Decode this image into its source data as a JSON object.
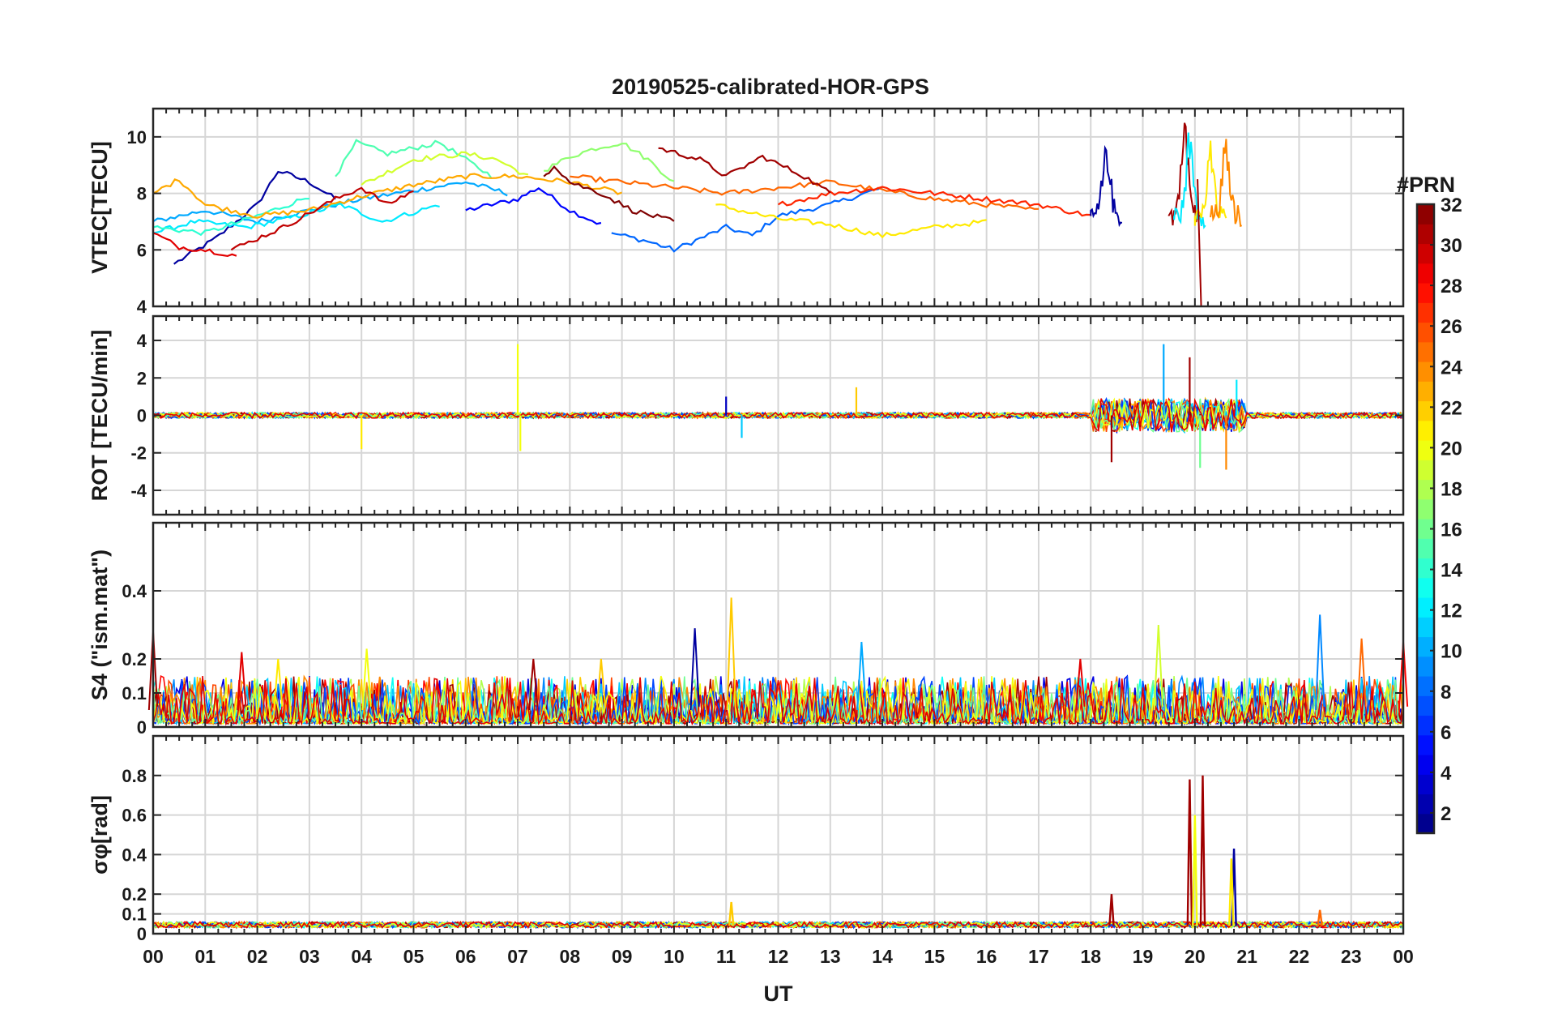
{
  "figure": {
    "title": "20190525-calibrated-HOR-GPS",
    "xlabel": "UT",
    "x_ticks": [
      "00",
      "01",
      "02",
      "03",
      "04",
      "05",
      "06",
      "07",
      "08",
      "09",
      "10",
      "11",
      "12",
      "13",
      "14",
      "15",
      "16",
      "17",
      "18",
      "19",
      "20",
      "21",
      "22",
      "23",
      "00"
    ]
  },
  "colorbar": {
    "label": "#PRN",
    "ticks": [
      "2",
      "4",
      "6",
      "8",
      "10",
      "12",
      "14",
      "16",
      "18",
      "20",
      "22",
      "24",
      "26",
      "28",
      "30",
      "32"
    ],
    "range": [
      1,
      32
    ],
    "colormap": "jet"
  },
  "chart_data": [
    {
      "type": "line",
      "panel": "vtec",
      "ylabel": "VTEC[TECU]",
      "ylim": [
        4,
        11
      ],
      "yticks": [
        4,
        6,
        8,
        10
      ],
      "xlim": [
        0,
        24
      ],
      "grid": true,
      "series_note": "One line per GPS satellite, colored by PRN",
      "series": [
        {
          "prn": 2,
          "x": [
            0.4,
            1.2,
            2.0,
            2.4,
            3.0,
            3.5
          ],
          "values": [
            5.5,
            6.4,
            7.6,
            8.8,
            8.4,
            7.8
          ]
        },
        {
          "prn": 5,
          "x": [
            6.0,
            7.0,
            7.4,
            8.0,
            8.6
          ],
          "values": [
            7.4,
            7.8,
            8.2,
            7.4,
            6.9
          ]
        },
        {
          "prn": 8,
          "x": [
            8.8,
            9.5,
            10.0,
            11.0,
            11.5,
            12.0,
            13.0,
            14.0
          ],
          "values": [
            6.6,
            6.3,
            6.0,
            6.8,
            6.5,
            7.2,
            7.6,
            8.2
          ]
        },
        {
          "prn": 10,
          "x": [
            0.0,
            1.0,
            2.0,
            3.0,
            4.0,
            5.0,
            6.0,
            6.8
          ],
          "values": [
            7.0,
            7.4,
            7.0,
            7.4,
            7.8,
            8.1,
            8.4,
            8.0
          ]
        },
        {
          "prn": 12,
          "x": [
            0.0,
            0.8,
            1.8,
            2.8,
            3.6,
            4.4,
            5.5
          ],
          "values": [
            6.6,
            7.0,
            6.8,
            7.2,
            7.6,
            7.0,
            7.6
          ]
        },
        {
          "prn": 14,
          "x": [
            0.0,
            1.0,
            2.0,
            2.6,
            3.0
          ],
          "values": [
            6.8,
            6.6,
            7.2,
            7.6,
            7.9
          ]
        },
        {
          "prn": 15,
          "x": [
            3.5,
            3.9,
            4.5,
            5.5,
            6.5
          ],
          "values": [
            8.6,
            9.8,
            9.4,
            9.8,
            8.6
          ]
        },
        {
          "prn": 17,
          "x": [
            7.5,
            8.0,
            8.5,
            9.0,
            9.5,
            10.0
          ],
          "values": [
            8.8,
            9.3,
            9.6,
            9.8,
            9.2,
            8.4
          ]
        },
        {
          "prn": 19,
          "x": [
            4.0,
            5.0,
            6.0,
            6.6,
            7.2
          ],
          "values": [
            8.3,
            9.2,
            9.4,
            9.2,
            8.6
          ]
        },
        {
          "prn": 21,
          "x": [
            10.8,
            11.5,
            12.0,
            13.0,
            14.0,
            15.0,
            16.0
          ],
          "values": [
            7.6,
            7.3,
            7.1,
            6.9,
            6.5,
            6.8,
            7.0
          ]
        },
        {
          "prn": 23,
          "x": [
            0.0,
            0.5,
            1.0,
            2.0,
            3.0,
            4.0,
            5.0,
            6.0,
            7.0,
            8.0,
            9.0
          ],
          "values": [
            8.0,
            8.5,
            7.6,
            7.2,
            7.4,
            7.9,
            8.3,
            8.6,
            8.6,
            8.4,
            8.0
          ]
        },
        {
          "prn": 25,
          "x": [
            8.0,
            9.0,
            10.0,
            11.0,
            12.0,
            13.0,
            14.0,
            15.0,
            16.0,
            17.0
          ],
          "values": [
            8.6,
            8.4,
            8.2,
            8.0,
            8.2,
            8.4,
            8.1,
            7.8,
            7.6,
            7.4
          ]
        },
        {
          "prn": 27,
          "x": [
            12.0,
            13.0,
            14.0,
            15.0,
            16.0,
            17.0,
            18.0
          ],
          "values": [
            7.6,
            8.0,
            8.2,
            8.0,
            7.8,
            7.6,
            7.2
          ]
        },
        {
          "prn": 29,
          "x": [
            0.0,
            0.5,
            1.0,
            1.6
          ],
          "values": [
            6.6,
            6.1,
            6.0,
            5.8
          ]
        },
        {
          "prn": 30,
          "x": [
            1.5,
            2.5,
            3.5,
            4.0,
            4.5,
            5.0
          ],
          "values": [
            6.0,
            6.8,
            7.8,
            8.2,
            7.6,
            8.1
          ]
        },
        {
          "prn": 31,
          "x": [
            9.7,
            10.5,
            11.0,
            11.7,
            12.5,
            13.0
          ],
          "values": [
            9.6,
            9.2,
            8.6,
            9.3,
            8.6,
            8.0
          ]
        },
        {
          "prn": 32,
          "x": [
            7.5,
            7.7,
            8.0,
            8.6,
            9.2,
            10.0
          ],
          "values": [
            8.6,
            9.0,
            8.4,
            8.0,
            7.4,
            7.0
          ]
        }
      ]
    },
    {
      "type": "line",
      "panel": "rot",
      "ylabel": "ROT [TECU/min]",
      "ylim": [
        -5.3,
        5.3
      ],
      "yticks": [
        -4,
        -2,
        0,
        2,
        4
      ],
      "xlim": [
        0,
        24
      ],
      "grid": true,
      "series_note": "Rate of TEC, noise around zero with spikes near 07, 18-21 UT"
    },
    {
      "type": "line",
      "panel": "s4",
      "ylabel": "S4 (\"ism.mat\")",
      "ylim": [
        0,
        0.6
      ],
      "yticks": [
        0,
        0.1,
        0.2,
        0.4
      ],
      "xlim": [
        0,
        24
      ],
      "grid": true,
      "series_note": "Amplitude scintillation index, background 0.02-0.15 with peaks up to 0.38 near 11 UT"
    },
    {
      "type": "line",
      "panel": "sigma_phi",
      "ylabel": "σφ[rad]",
      "ylim": [
        0,
        1.0
      ],
      "yticks": [
        0,
        0.1,
        0.2,
        0.4,
        0.6,
        0.8
      ],
      "xlim": [
        0,
        24
      ],
      "grid": true,
      "series_note": "Phase scintillation index, background ~0.04 with peaks of 0.78-0.80 near 20 UT"
    }
  ]
}
